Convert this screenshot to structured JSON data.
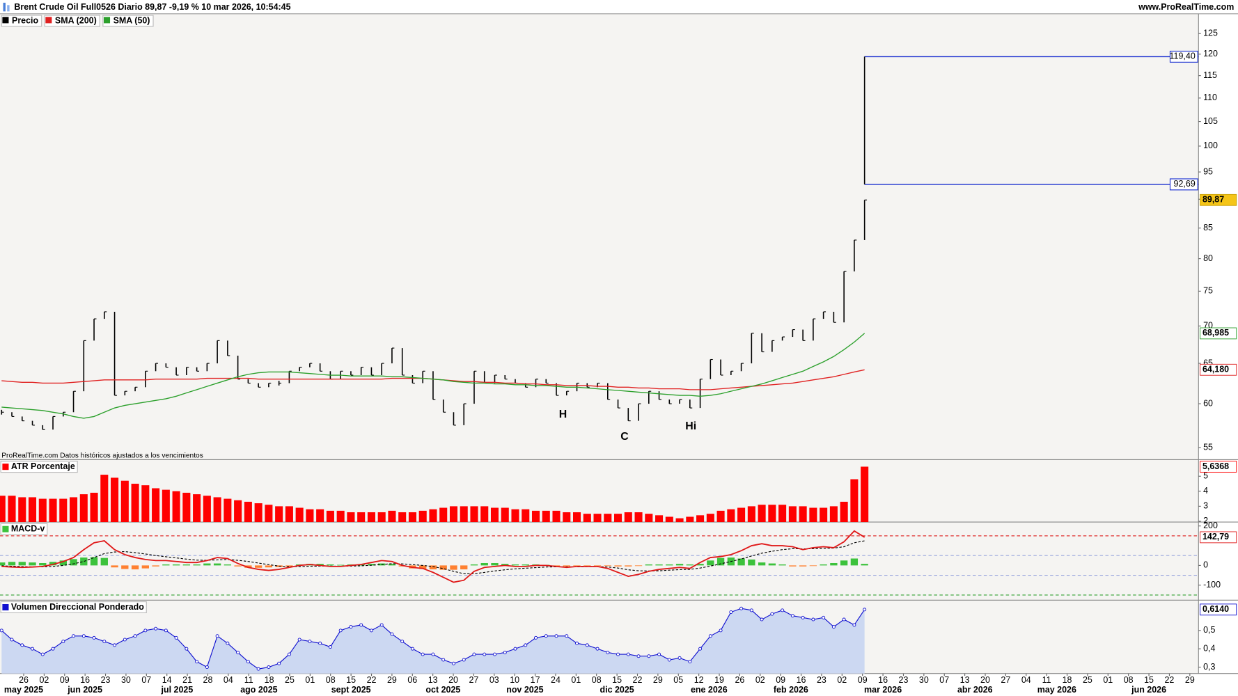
{
  "header": {
    "title": "Brent Crude Oil Full0526 Diario 89,87 -9,19 % 10 mar 2026, 10:54:45",
    "site": "www.ProRealTime.com",
    "note": "ProRealTime.com Datos históricos ajustados a los vencimientos"
  },
  "chart_data": [
    {
      "type": "price",
      "log": true,
      "ylim": [
        53.7,
        129.8
      ],
      "yticks": [
        55,
        60,
        65,
        70,
        75,
        80,
        85,
        90,
        95,
        100,
        105,
        110,
        115,
        120,
        125
      ],
      "series": [
        {
          "name": "Precio",
          "color": "#000000",
          "style": "bars",
          "last_label": "89,87",
          "values": [
            59,
            58.5,
            58,
            57.5,
            57,
            58.5,
            59,
            61.5,
            68,
            71,
            72,
            61,
            61.5,
            62,
            64,
            65,
            64.5,
            63.5,
            64.5,
            64,
            65,
            68,
            66,
            63,
            62.5,
            62,
            62.5,
            62.5,
            64,
            64.5,
            65,
            64,
            63,
            64,
            63.5,
            64.5,
            63.5,
            65,
            67,
            63.5,
            62.5,
            64,
            60.5,
            59,
            57.5,
            60,
            64,
            62.5,
            63.5,
            63,
            62.5,
            62,
            63,
            62.5,
            61,
            61.5,
            62.5,
            62,
            62.5,
            60.5,
            59.5,
            58,
            60,
            61.5,
            60.5,
            60,
            60.5,
            59.5,
            63,
            65.5,
            63.5,
            64,
            65,
            69,
            66.5,
            68,
            68.5,
            69.5,
            68,
            71,
            72,
            70.5,
            78,
            83,
            89.87
          ]
        },
        {
          "name": "SMA (200)",
          "color": "#e02020",
          "style": "line",
          "last_label": "64,180",
          "values": [
            62.8,
            62.7,
            62.6,
            62.6,
            62.5,
            62.5,
            62.5,
            62.6,
            62.7,
            62.8,
            62.9,
            62.9,
            62.9,
            62.9,
            62.9,
            63.0,
            63.0,
            63.0,
            63.0,
            63.0,
            63.1,
            63.1,
            63.1,
            63.1,
            63.1,
            63.0,
            63.0,
            63.0,
            63.0,
            63.0,
            63.0,
            63.0,
            63.0,
            63.0,
            63.0,
            63.0,
            63.0,
            63.0,
            63.1,
            63.1,
            63.1,
            63.1,
            63.0,
            62.9,
            62.8,
            62.7,
            62.7,
            62.6,
            62.6,
            62.5,
            62.5,
            62.4,
            62.4,
            62.3,
            62.3,
            62.2,
            62.2,
            62.2,
            62.1,
            62.1,
            62.0,
            62.0,
            61.9,
            61.9,
            61.8,
            61.8,
            61.8,
            61.7,
            61.7,
            61.7,
            61.8,
            61.9,
            62.0,
            62.1,
            62.2,
            62.3,
            62.4,
            62.5,
            62.7,
            62.9,
            63.1,
            63.3,
            63.6,
            63.9,
            64.18
          ]
        },
        {
          "name": "SMA (50)",
          "color": "#2ca02c",
          "style": "line",
          "last_label": "68,985",
          "values": [
            59.6,
            59.5,
            59.4,
            59.3,
            59.2,
            59.0,
            58.8,
            58.5,
            58.3,
            58.5,
            59.0,
            59.5,
            59.8,
            60.0,
            60.2,
            60.4,
            60.6,
            60.9,
            61.3,
            61.7,
            62.1,
            62.5,
            62.9,
            63.3,
            63.6,
            63.8,
            63.9,
            63.9,
            63.9,
            63.8,
            63.7,
            63.6,
            63.5,
            63.5,
            63.4,
            63.4,
            63.4,
            63.4,
            63.3,
            63.3,
            63.2,
            63.1,
            63.0,
            62.9,
            62.7,
            62.6,
            62.5,
            62.5,
            62.4,
            62.4,
            62.3,
            62.3,
            62.2,
            62.2,
            62.1,
            62.0,
            62.0,
            61.9,
            61.8,
            61.7,
            61.6,
            61.5,
            61.4,
            61.3,
            61.2,
            61.1,
            61.0,
            61.0,
            60.9,
            61.0,
            61.2,
            61.5,
            61.8,
            62.1,
            62.4,
            62.8,
            63.2,
            63.6,
            64.0,
            64.6,
            65.2,
            65.9,
            66.8,
            67.8,
            68.985
          ]
        }
      ],
      "levels": [
        {
          "value": 119.4,
          "label": "119,40",
          "color": "#1a2fd0"
        },
        {
          "value": 92.69,
          "label": "92,69",
          "color": "#1a2fd0"
        }
      ],
      "annotations": [
        {
          "text": "H",
          "color": "#1e8a1e"
        },
        {
          "text": "C",
          "color": "#1e8a1e"
        },
        {
          "text": "Hi",
          "color": "#1e8a1e"
        }
      ]
    },
    {
      "type": "bar",
      "title": "ATR Porcentaje",
      "color": "#ff0000",
      "ylim": [
        1.95,
        6.05
      ],
      "yticks": [
        2,
        3,
        4,
        5
      ],
      "last_label": "5,6368",
      "values": [
        3.7,
        3.7,
        3.6,
        3.6,
        3.5,
        3.5,
        3.5,
        3.6,
        3.8,
        3.9,
        5.1,
        4.9,
        4.7,
        4.5,
        4.4,
        4.2,
        4.1,
        4.0,
        3.9,
        3.8,
        3.7,
        3.6,
        3.5,
        3.4,
        3.3,
        3.2,
        3.1,
        3.0,
        3.0,
        2.9,
        2.8,
        2.8,
        2.7,
        2.7,
        2.6,
        2.6,
        2.6,
        2.6,
        2.7,
        2.6,
        2.6,
        2.7,
        2.8,
        2.9,
        3.0,
        3.0,
        3.0,
        3.0,
        2.9,
        2.9,
        2.8,
        2.8,
        2.7,
        2.7,
        2.7,
        2.6,
        2.6,
        2.5,
        2.5,
        2.5,
        2.5,
        2.6,
        2.6,
        2.5,
        2.4,
        2.3,
        2.2,
        2.3,
        2.4,
        2.5,
        2.7,
        2.8,
        2.9,
        3.0,
        3.1,
        3.1,
        3.1,
        3.0,
        3.0,
        2.9,
        2.9,
        3.0,
        3.3,
        4.8,
        5.6368
      ]
    },
    {
      "type": "macd",
      "title": "MACD-v",
      "ylim": [
        -176,
        216
      ],
      "yticks": [
        -100,
        0,
        200
      ],
      "levels": [
        {
          "value": 150,
          "color": "#e03030"
        },
        {
          "value": 50,
          "color": "#9aa6dd"
        },
        {
          "value": -50,
          "color": "#9aa6dd"
        },
        {
          "value": -150,
          "color": "#30a030"
        }
      ],
      "series": [
        {
          "style": "histogram",
          "color": "#3cc23c",
          "negative_color": "#ff8030",
          "values": [
            15,
            18,
            18,
            15,
            12,
            18,
            25,
            32,
            40,
            42,
            38,
            -10,
            -18,
            -20,
            -15,
            -5,
            5,
            5,
            5,
            5,
            10,
            10,
            5,
            -5,
            -12,
            -12,
            -10,
            -8,
            -5,
            5,
            8,
            8,
            5,
            3,
            5,
            5,
            8,
            10,
            8,
            -5,
            -15,
            -18,
            -20,
            -22,
            -22,
            -20,
            5,
            12,
            12,
            8,
            5,
            5,
            5,
            3,
            -5,
            -5,
            -3,
            -3,
            -3,
            -3,
            -5,
            -5,
            -3,
            5,
            5,
            5,
            8,
            5,
            8,
            25,
            38,
            40,
            35,
            30,
            15,
            10,
            5,
            -5,
            -5,
            -3,
            5,
            12,
            25,
            35,
            8
          ]
        },
        {
          "style": "dashed",
          "color": "#000000",
          "values": [
            -2,
            -4,
            -6,
            -7,
            -7,
            -5,
            0,
            8,
            20,
            40,
            60,
            68,
            70,
            65,
            58,
            50,
            44,
            38,
            32,
            27,
            26,
            28,
            30,
            26,
            20,
            12,
            4,
            -3,
            -6,
            -6,
            -4,
            -3,
            -3,
            -4,
            -3,
            -2,
            1,
            5,
            9,
            8,
            4,
            0,
            -6,
            -16,
            -30,
            -42,
            -42,
            -35,
            -28,
            -22,
            -17,
            -14,
            -11,
            -8,
            -7,
            -7,
            -7,
            -6,
            -6,
            -8,
            -13,
            -22,
            -27,
            -28,
            -27,
            -24,
            -21,
            -20,
            -13,
            -3,
            8,
            20,
            33,
            48,
            62,
            72,
            80,
            85,
            84,
            85,
            87,
            88,
            95,
            115,
            125
          ]
        },
        {
          "style": "line",
          "color": "#e01818",
          "last_label": "142,79",
          "values": [
            -5,
            -8,
            -10,
            -8,
            -5,
            5,
            20,
            40,
            80,
            115,
            125,
            80,
            55,
            40,
            30,
            25,
            25,
            20,
            15,
            15,
            25,
            40,
            35,
            10,
            -10,
            -20,
            -25,
            -20,
            -10,
            0,
            5,
            0,
            -5,
            -5,
            0,
            5,
            15,
            25,
            20,
            0,
            -10,
            -15,
            -35,
            -60,
            -85,
            -75,
            -30,
            -10,
            -5,
            0,
            -5,
            -5,
            0,
            0,
            -5,
            -10,
            -5,
            -5,
            -5,
            -15,
            -35,
            -55,
            -45,
            -30,
            -20,
            -15,
            -10,
            -15,
            15,
            40,
            45,
            55,
            75,
            100,
            110,
            100,
            100,
            95,
            80,
            90,
            95,
            90,
            120,
            175,
            142.79
          ]
        }
      ]
    },
    {
      "type": "area",
      "title": "Volumen Direccional Ponderado",
      "color": "#1010d0",
      "fill": "#ccd8f2",
      "ylim": [
        0.265,
        0.661
      ],
      "yticks": [
        {
          "value": 0.3,
          "label": "0,3"
        },
        {
          "value": 0.4,
          "label": "0,4"
        },
        {
          "value": 0.5,
          "label": "0,5"
        }
      ],
      "last_label": "0,6140",
      "values": [
        0.5,
        0.45,
        0.42,
        0.4,
        0.37,
        0.4,
        0.44,
        0.47,
        0.47,
        0.46,
        0.44,
        0.42,
        0.45,
        0.47,
        0.5,
        0.51,
        0.5,
        0.46,
        0.4,
        0.33,
        0.3,
        0.47,
        0.43,
        0.38,
        0.33,
        0.29,
        0.3,
        0.32,
        0.37,
        0.45,
        0.44,
        0.43,
        0.41,
        0.5,
        0.52,
        0.53,
        0.5,
        0.53,
        0.48,
        0.44,
        0.4,
        0.37,
        0.37,
        0.34,
        0.32,
        0.34,
        0.37,
        0.37,
        0.37,
        0.38,
        0.4,
        0.42,
        0.46,
        0.47,
        0.47,
        0.47,
        0.43,
        0.42,
        0.4,
        0.38,
        0.37,
        0.37,
        0.36,
        0.36,
        0.37,
        0.34,
        0.35,
        0.33,
        0.4,
        0.47,
        0.5,
        0.6,
        0.62,
        0.61,
        0.56,
        0.59,
        0.61,
        0.58,
        0.57,
        0.56,
        0.57,
        0.52,
        0.56,
        0.53,
        0.614
      ],
      "week_labels": [
        "26",
        "02",
        "09",
        "16",
        "23",
        "30",
        "07",
        "14",
        "21",
        "28",
        "04",
        "11",
        "18",
        "25",
        "01",
        "08",
        "15",
        "22",
        "29",
        "06",
        "13",
        "20",
        "27",
        "03",
        "10",
        "17",
        "24",
        "01",
        "08",
        "15",
        "22",
        "29",
        "05",
        "12",
        "19",
        "26",
        "02",
        "09",
        "16",
        "23",
        "02",
        "09",
        "16",
        "23",
        "30",
        "07",
        "13",
        "20",
        "27",
        "04",
        "11",
        "18",
        "25",
        "01",
        "08",
        "15",
        "22",
        "29"
      ],
      "month_labels": [
        "may 2025",
        "jun 2025",
        "jul 2025",
        "ago 2025",
        "sept 2025",
        "oct 2025",
        "nov 2025",
        "dic 2025",
        "ene 2026",
        "feb 2026",
        "mar 2026",
        "abr 2026",
        "may 2026",
        "jun 2026"
      ]
    }
  ]
}
